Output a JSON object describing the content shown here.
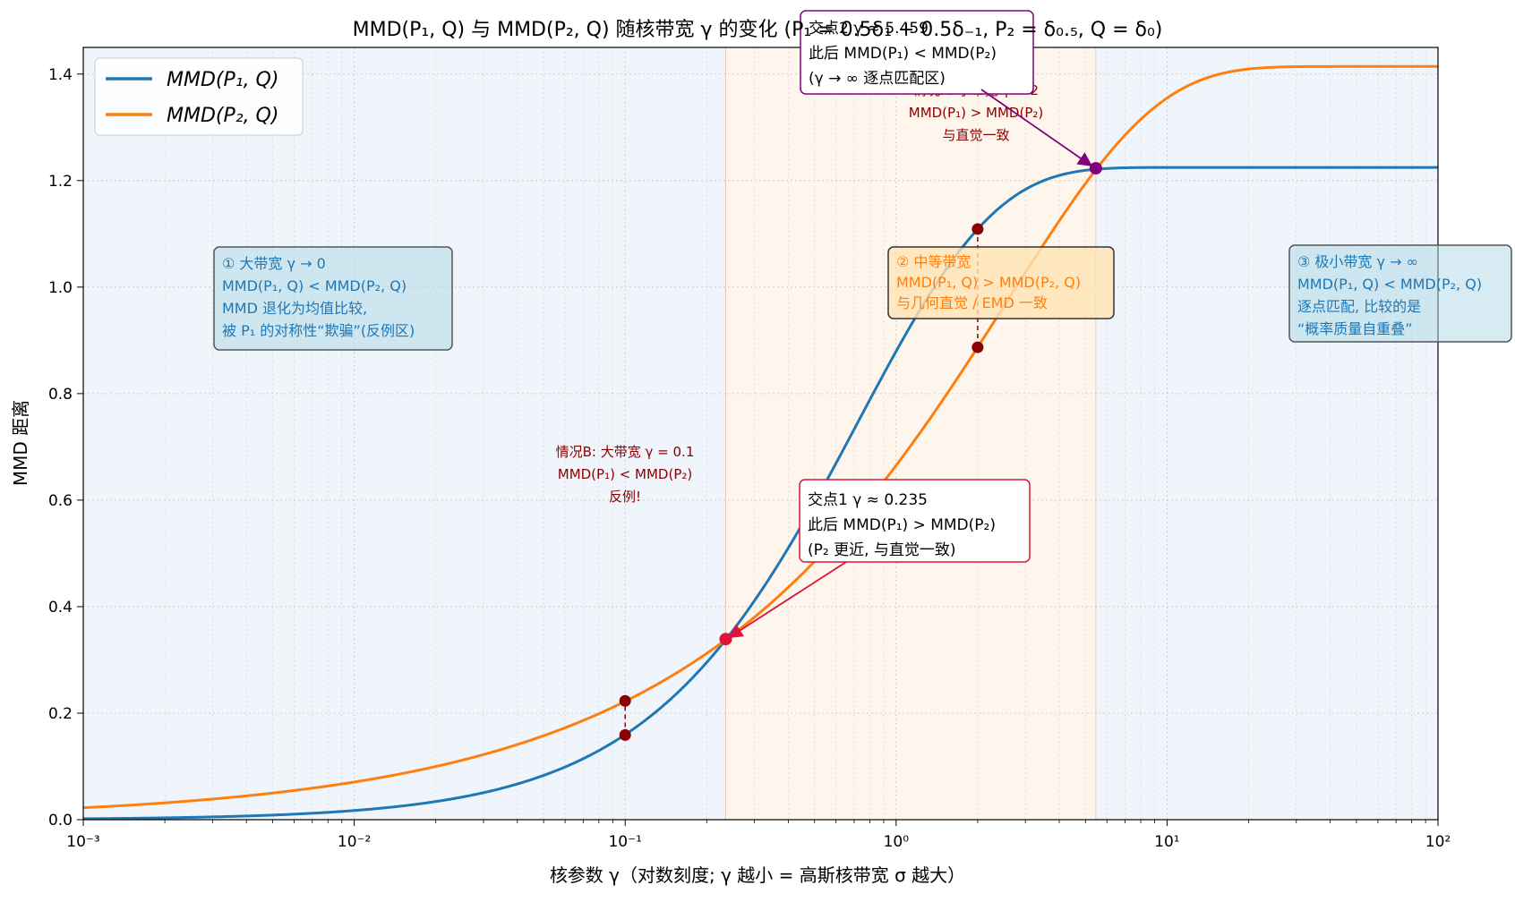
{
  "chart_data": {
    "type": "line",
    "title": "MMD(P₁, Q) 与 MMD(P₂, Q) 随核带宽 γ 的变化  (P₁ = 0.5δ₁ + 0.5δ₋₁, P₂ = δ₀.₅, Q = δ₀)",
    "xlabel": "核参数 γ（对数刻度; γ 越小 = 高斯核带宽 σ 越大）",
    "ylabel": "MMD 距离",
    "xscale": "log",
    "xlim": [
      0.001,
      100
    ],
    "ylim": [
      0,
      1.45
    ],
    "grid": true,
    "legend_position": "top-left",
    "x_ticks": [
      {
        "value": 0.001,
        "label": "10⁻³"
      },
      {
        "value": 0.01,
        "label": "10⁻²"
      },
      {
        "value": 0.1,
        "label": "10⁻¹"
      },
      {
        "value": 1,
        "label": "10⁰"
      },
      {
        "value": 10,
        "label": "10¹"
      },
      {
        "value": 100,
        "label": "10²"
      }
    ],
    "y_ticks": [
      {
        "value": 0.0,
        "label": "0.0"
      },
      {
        "value": 0.2,
        "label": "0.2"
      },
      {
        "value": 0.4,
        "label": "0.4"
      },
      {
        "value": 0.6,
        "label": "0.6"
      },
      {
        "value": 0.8,
        "label": "0.8"
      },
      {
        "value": 1.0,
        "label": "1.0"
      },
      {
        "value": 1.2,
        "label": "1.2"
      },
      {
        "value": 1.4,
        "label": "1.4"
      }
    ],
    "series": [
      {
        "name": "MMD(P₁, Q)",
        "color": "#1f77b4",
        "formula": "sqrt(1.5 - 2e^(-γ) + 0.5e^(-4γ))"
      },
      {
        "name": "MMD(P₂, Q)",
        "color": "#ff7f0e",
        "formula": "sqrt(2 - 2e^(-0.25γ))"
      }
    ],
    "regions": [
      {
        "x_from": 0.001,
        "x_to": 0.235,
        "color": "#dce9f4"
      },
      {
        "x_from": 0.235,
        "x_to": 5.459,
        "color": "#fde8d4"
      },
      {
        "x_from": 5.459,
        "x_to": 100,
        "color": "#dce9f4"
      }
    ],
    "crossings": [
      {
        "x": 0.235,
        "y": 0.339,
        "color": "#dc143c"
      },
      {
        "x": 5.459,
        "y": 1.223,
        "color": "#800080"
      }
    ],
    "case_points": [
      {
        "x": 0.1,
        "y_p1": 0.159,
        "y_p2": 0.223
      },
      {
        "x": 2,
        "y_p1": 1.109,
        "y_p2": 0.887
      }
    ],
    "annotations": {
      "region1": [
        "① 大带宽 γ → 0",
        "MMD(P₁, Q) < MMD(P₂, Q)",
        "MMD 退化为均值比较,",
        "被 P₁ 的对称性“欺骗”(反例区)"
      ],
      "region2": [
        "② 中等带宽",
        "MMD(P₁, Q) > MMD(P₂, Q)",
        "与几何直觉 / EMD 一致"
      ],
      "region3": [
        "③ 极小带宽 γ → ∞",
        "MMD(P₁, Q) < MMD(P₂, Q)",
        "逐点匹配, 比较的是",
        "“概率质量自重叠”"
      ],
      "caseB": [
        "情况B: 大带宽 γ = 0.1",
        "MMD(P₁) < MMD(P₂)",
        "反例!"
      ],
      "caseA": [
        "情况A: 小带宽 γ = 2",
        "MMD(P₁) > MMD(P₂)",
        "与直觉一致"
      ],
      "cross1": [
        "交点1 γ ≈ 0.235",
        "此后 MMD(P₁) > MMD(P₂)",
        "(P₂ 更近, 与直觉一致)"
      ],
      "cross2": [
        "交点2 γ ≈ 5.459",
        "此后 MMD(P₁) < MMD(P₂)",
        "(γ → ∞ 逐点匹配区)"
      ]
    }
  }
}
